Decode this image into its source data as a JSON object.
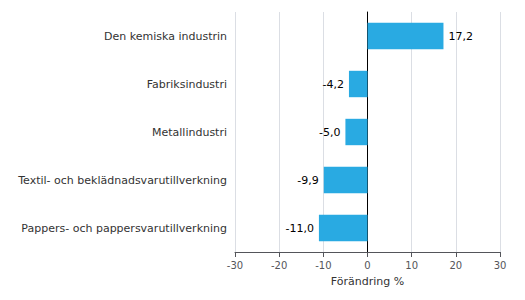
{
  "chart_data": {
    "type": "bar",
    "orientation": "horizontal",
    "categories": [
      "Den kemiska industrin",
      "Fabriksindustri",
      "Metallindustri",
      "Textil- och beklädnadsvarutillverkning",
      "Pappers- och pappersvarutillverkning"
    ],
    "values": [
      17.2,
      -4.2,
      -5.0,
      -9.9,
      -11.0
    ],
    "value_labels": [
      "17,2",
      "-4,2",
      "-5,0",
      "-9,9",
      "-11,0"
    ],
    "data_labels": true,
    "color": "#29aae2",
    "xlabel": "Förändring %",
    "xlim": [
      -30,
      30
    ],
    "xticks": [
      -30,
      -20,
      -10,
      0,
      10,
      20,
      30
    ],
    "grid": true
  }
}
